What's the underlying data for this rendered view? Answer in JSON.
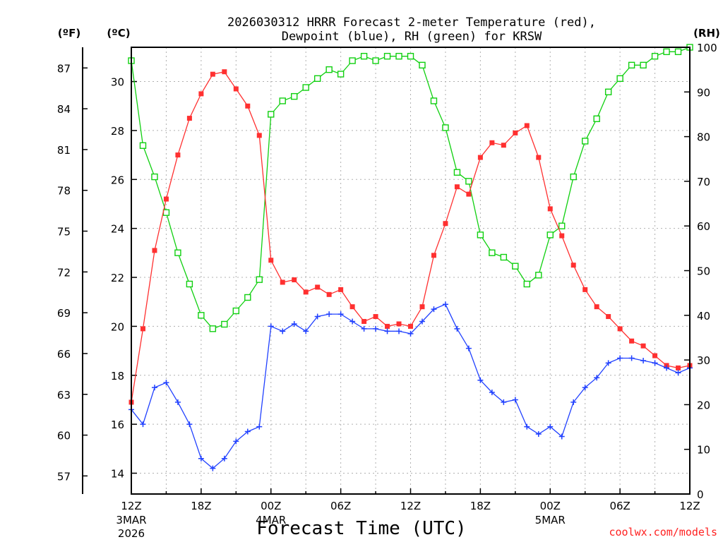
{
  "chart_data": {
    "type": "line",
    "title_line1": "2026030312 HRRR Forecast 2-meter Temperature (red),",
    "title_line2": "Dewpoint (blue), RH (green) for KRSW",
    "xlabel": "Forecast Time (UTC)",
    "credit": "coolwx.com/models",
    "units": {
      "f": "(ºF)",
      "c": "(ºC)",
      "rh": "(RH)"
    },
    "x_range": [
      0,
      48
    ],
    "x_ticks": [
      {
        "x": 0,
        "label": "12Z",
        "sub1": "3MAR",
        "sub2": "2026"
      },
      {
        "x": 6,
        "label": "18Z"
      },
      {
        "x": 12,
        "label": "00Z",
        "sub1": "4MAR"
      },
      {
        "x": 18,
        "label": "06Z"
      },
      {
        "x": 24,
        "label": "12Z"
      },
      {
        "x": 30,
        "label": "18Z"
      },
      {
        "x": 36,
        "label": "00Z",
        "sub1": "5MAR"
      },
      {
        "x": 42,
        "label": "06Z"
      },
      {
        "x": 48,
        "label": "12Z"
      }
    ],
    "c_axis": {
      "min": 13.15,
      "max": 31.4,
      "ticks": [
        14,
        16,
        18,
        20,
        22,
        24,
        26,
        28,
        30
      ]
    },
    "f_ticks": [
      "57",
      "60",
      "63",
      "66",
      "69",
      "72",
      "75",
      "78",
      "81",
      "84",
      "87"
    ],
    "rh_axis": {
      "min": 0,
      "max": 100,
      "ticks": [
        0,
        10,
        20,
        30,
        40,
        50,
        60,
        70,
        80,
        90,
        100
      ]
    },
    "colors": {
      "temperature": "#ff3030",
      "dewpoint": "#2040ff",
      "rh": "#10d010",
      "grid": "#b0b0b0"
    },
    "series": [
      {
        "name": "Temperature",
        "units": "C",
        "marker": "filled-square",
        "values": [
          16.9,
          19.9,
          23.1,
          25.2,
          27.0,
          28.5,
          29.5,
          30.3,
          30.4,
          29.7,
          29.0,
          27.8,
          22.7,
          21.8,
          21.9,
          21.4,
          21.6,
          21.3,
          21.5,
          20.8,
          20.2,
          20.4,
          20.0,
          20.1,
          20.0,
          20.8,
          22.9,
          24.2,
          25.7,
          25.4,
          26.9,
          27.5,
          27.4,
          27.9,
          28.2,
          26.9,
          24.8,
          23.7,
          22.5,
          21.5,
          20.8,
          20.4,
          19.9,
          19.4,
          19.2,
          18.8,
          18.4,
          18.3,
          18.4
        ]
      },
      {
        "name": "Dewpoint",
        "units": "C",
        "marker": "plus",
        "values": [
          16.6,
          16.0,
          17.5,
          17.7,
          16.9,
          16.0,
          14.6,
          14.2,
          14.6,
          15.3,
          15.7,
          15.9,
          20.0,
          19.8,
          20.1,
          19.8,
          20.4,
          20.5,
          20.5,
          20.2,
          19.9,
          19.9,
          19.8,
          19.8,
          19.7,
          20.2,
          20.7,
          20.9,
          19.9,
          19.1,
          17.8,
          17.3,
          16.9,
          17.0,
          15.9,
          15.6,
          15.9,
          15.5,
          16.9,
          17.5,
          17.9,
          18.5,
          18.7,
          18.7,
          18.6,
          18.5,
          18.3,
          18.1,
          18.3
        ]
      },
      {
        "name": "RH",
        "units": "%",
        "marker": "open-square",
        "values": [
          97,
          78,
          71,
          63,
          54,
          47,
          40,
          37,
          38,
          41,
          44,
          48,
          85,
          88,
          89,
          91,
          93,
          95,
          94,
          97,
          98,
          97,
          98,
          98,
          98,
          96,
          88,
          82,
          72,
          70,
          58,
          54,
          53,
          51,
          47,
          49,
          58,
          60,
          71,
          79,
          84,
          90,
          93,
          96,
          96,
          98,
          99,
          99,
          100
        ]
      }
    ]
  }
}
